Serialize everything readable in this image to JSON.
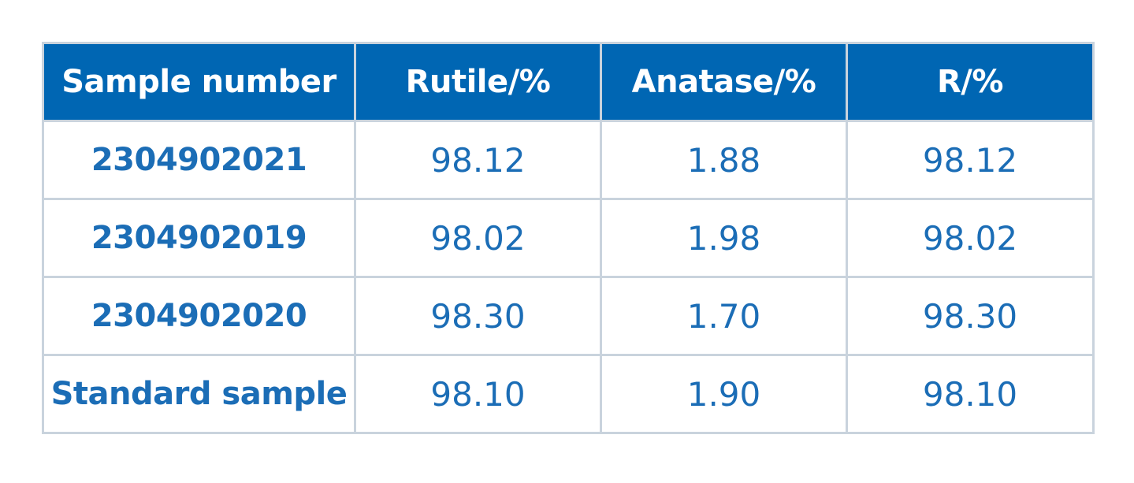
{
  "table": {
    "header": [
      "Sample number",
      "Rutile/%",
      "Anatase/%",
      "R/%"
    ],
    "rows": [
      [
        "2304902021",
        "98.12",
        "1.88",
        "98.12"
      ],
      [
        "2304902019",
        "98.02",
        "1.98",
        "98.02"
      ],
      [
        "2304902020",
        "98.30",
        "1.70",
        "98.30"
      ],
      [
        "Standard sample",
        "98.10",
        "1.90",
        "98.10"
      ]
    ]
  }
}
